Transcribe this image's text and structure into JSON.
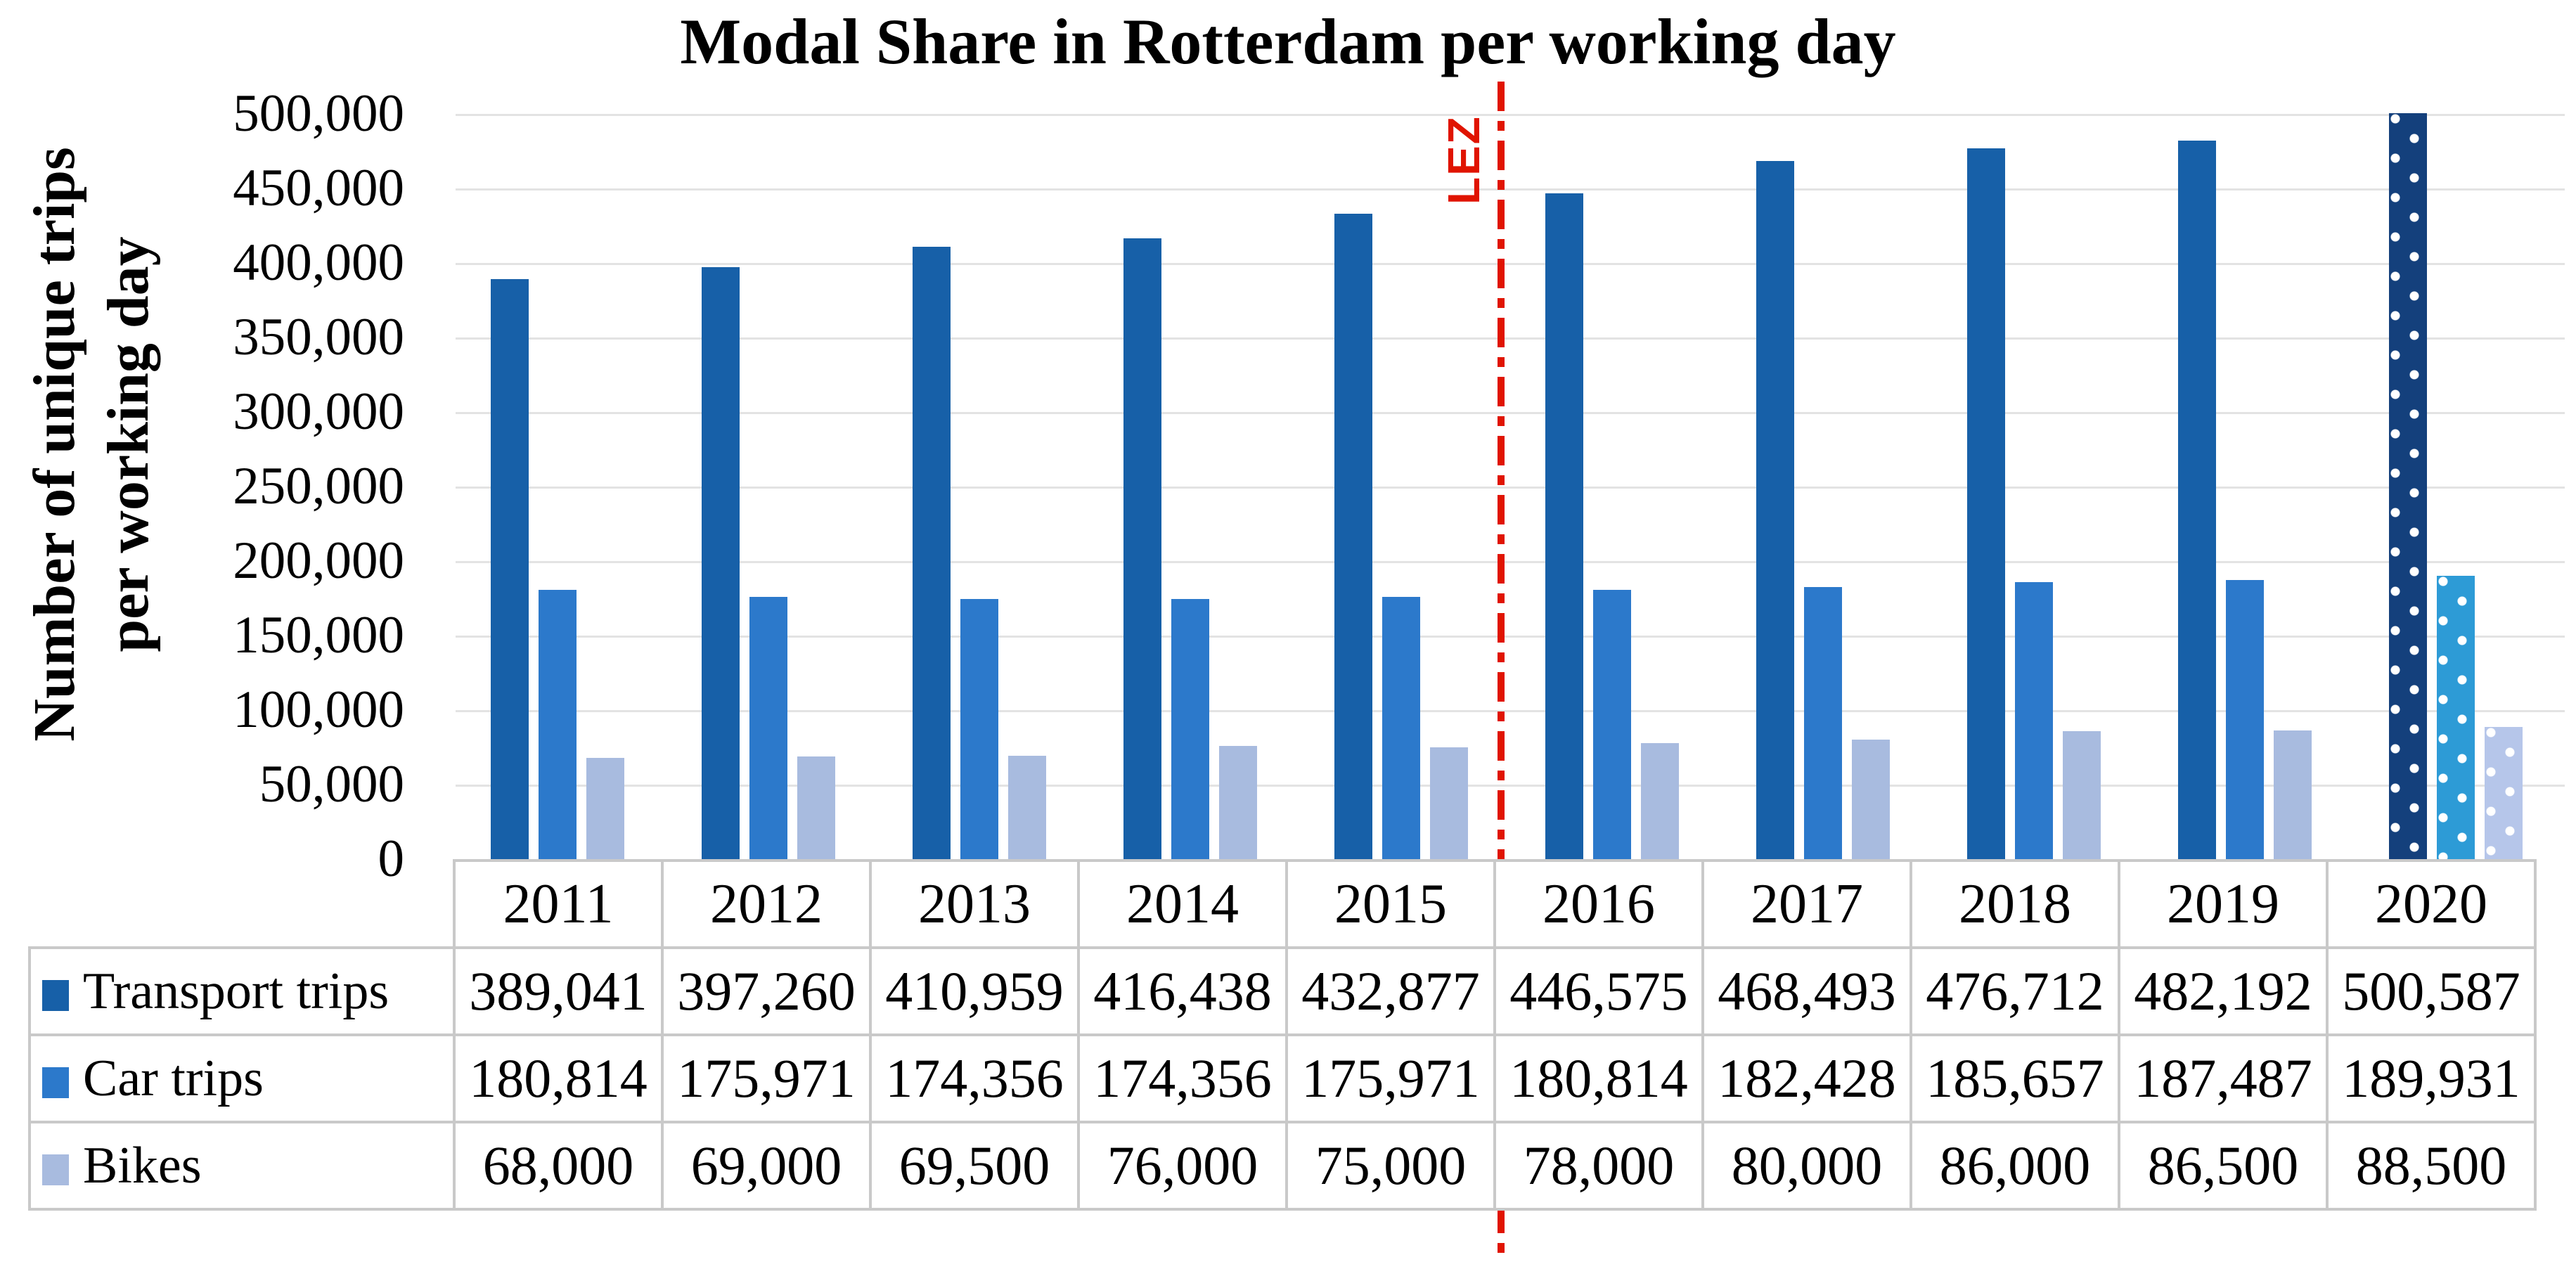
{
  "title": "Modal Share in Rotterdam per working day",
  "y_axis": {
    "title_line1": "Number of unique trips",
    "title_line2": "per working day",
    "ticks": [
      "500,000",
      "450,000",
      "400,000",
      "350,000",
      "300,000",
      "250,000",
      "200,000",
      "150,000",
      "100,000",
      "50,000",
      "0"
    ]
  },
  "lez": {
    "label": "LEZ",
    "color": "#e01400"
  },
  "chart_data": {
    "type": "bar",
    "title": "Modal Share in Rotterdam per working day",
    "xlabel": "",
    "ylabel": "Number of unique trips per working day",
    "ylim": [
      0,
      500000
    ],
    "gridline_step": 50000,
    "grid": true,
    "legend_position": "table-left",
    "categories": [
      "2011",
      "2012",
      "2013",
      "2014",
      "2015",
      "2016",
      "2017",
      "2018",
      "2019",
      "2020"
    ],
    "series": [
      {
        "name": "Transport trips",
        "color": "#1760a8",
        "color_2020": "#14407c",
        "pattern_2020": "white-dots",
        "values": [
          389041,
          397260,
          410959,
          416438,
          432877,
          446575,
          468493,
          476712,
          482192,
          500587
        ]
      },
      {
        "name": "Car trips",
        "color": "#2c79cb",
        "color_2020": "#2d9bd6",
        "pattern_2020": "white-dots",
        "values": [
          180814,
          175971,
          174356,
          174356,
          175971,
          180814,
          182428,
          185657,
          187487,
          189931
        ]
      },
      {
        "name": "Bikes",
        "color": "#a8bbdf",
        "color_2020": "#b6c6ea",
        "pattern_2020": "white-dots",
        "values": [
          68000,
          69000,
          69500,
          76000,
          75000,
          78000,
          80000,
          86000,
          86500,
          88500
        ]
      }
    ],
    "annotation": {
      "label": "LEZ",
      "type": "vertical-dash-dot-line",
      "position_between": [
        "2015",
        "2016"
      ],
      "color": "#e01400"
    }
  },
  "table": {
    "years": [
      "2011",
      "2012",
      "2013",
      "2014",
      "2015",
      "2016",
      "2017",
      "2018",
      "2019",
      "2020"
    ],
    "rows": [
      {
        "label": "Transport trips",
        "values": [
          "389,041",
          "397,260",
          "410,959",
          "416,438",
          "432,877",
          "446,575",
          "468,493",
          "476,712",
          "482,192",
          "500,587"
        ]
      },
      {
        "label": "Car trips",
        "values": [
          "180,814",
          "175,971",
          "174,356",
          "174,356",
          "175,971",
          "180,814",
          "182,428",
          "185,657",
          "187,487",
          "189,931"
        ]
      },
      {
        "label": "Bikes",
        "values": [
          "68,000",
          "69,000",
          "69,500",
          "76,000",
          "75,000",
          "78,000",
          "80,000",
          "86,000",
          "86,500",
          "88,500"
        ]
      }
    ]
  }
}
